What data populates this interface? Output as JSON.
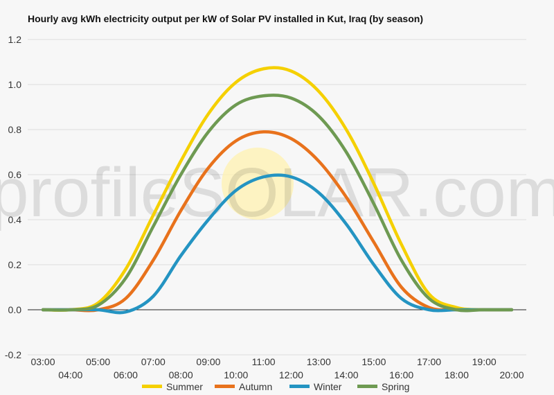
{
  "chart_data": {
    "type": "line",
    "title": "Hourly avg kWh electricity output per kW of Solar PV installed in Kut, Iraq (by season)",
    "xlabel": "",
    "ylabel": "",
    "ylim": [
      -0.2,
      1.2
    ],
    "yticks": [
      "-0.2",
      "0.0",
      "0.2",
      "0.4",
      "0.6",
      "0.8",
      "1.0",
      "1.2"
    ],
    "x": [
      "03:00",
      "04:00",
      "05:00",
      "06:00",
      "07:00",
      "08:00",
      "09:00",
      "10:00",
      "11:00",
      "12:00",
      "13:00",
      "14:00",
      "15:00",
      "16:00",
      "17:00",
      "18:00",
      "19:00",
      "20:00"
    ],
    "grid": true,
    "legend_position": "bottom",
    "watermark": "profileSOLAR.com",
    "series": [
      {
        "name": "Summer",
        "color": "#f5d000",
        "values": [
          0.0,
          0.0,
          0.03,
          0.18,
          0.42,
          0.66,
          0.87,
          1.01,
          1.07,
          1.06,
          0.97,
          0.8,
          0.56,
          0.29,
          0.07,
          0.01,
          0.0,
          0.0
        ]
      },
      {
        "name": "Autumn",
        "color": "#e8721c",
        "values": [
          0.0,
          0.0,
          0.0,
          0.05,
          0.22,
          0.44,
          0.63,
          0.75,
          0.79,
          0.76,
          0.66,
          0.5,
          0.3,
          0.1,
          0.01,
          0.0,
          0.0,
          0.0
        ]
      },
      {
        "name": "Winter",
        "color": "#2494c2",
        "values": [
          0.0,
          0.0,
          0.0,
          -0.01,
          0.06,
          0.24,
          0.4,
          0.53,
          0.59,
          0.59,
          0.52,
          0.38,
          0.2,
          0.05,
          0.0,
          0.0,
          0.0,
          0.0
        ]
      },
      {
        "name": "Spring",
        "color": "#6e9a52",
        "values": [
          0.0,
          0.0,
          0.02,
          0.14,
          0.37,
          0.6,
          0.79,
          0.91,
          0.95,
          0.94,
          0.86,
          0.7,
          0.47,
          0.22,
          0.05,
          0.0,
          0.0,
          0.0
        ]
      }
    ]
  }
}
